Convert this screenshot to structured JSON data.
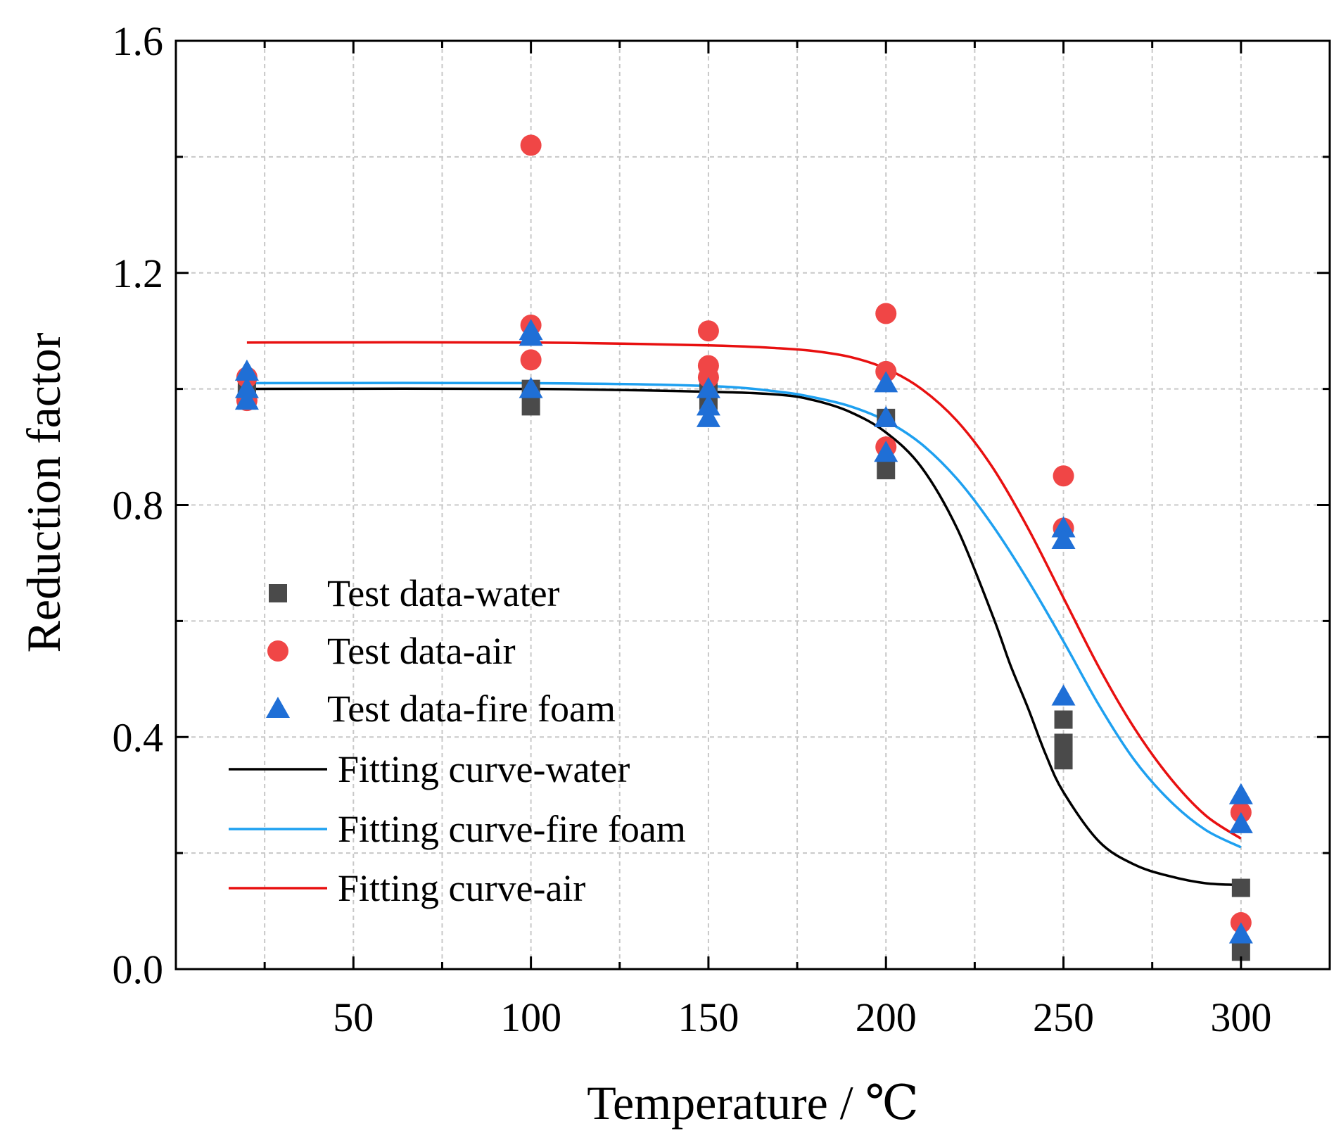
{
  "chart_data": {
    "type": "scatter",
    "title": "",
    "xlabel": "Temperature / ℃",
    "ylabel": "Reduction factor",
    "xlim": [
      0,
      325
    ],
    "ylim": [
      0.0,
      1.6
    ],
    "xticks": [
      50,
      100,
      150,
      200,
      250,
      300
    ],
    "xtick_labels": [
      "50",
      "100",
      "150",
      "200",
      "250",
      "300"
    ],
    "yticks": [
      0.0,
      0.4,
      0.8,
      1.2,
      1.6
    ],
    "ytick_labels": [
      "0.0",
      "0.4",
      "0.8",
      "1.2",
      "1.6"
    ],
    "grid": true,
    "legend_position": "center-left",
    "series": [
      {
        "name": "Test data-water",
        "kind": "scatter",
        "marker": "square",
        "color": "#4a4a4a",
        "points": [
          [
            20,
            1.0
          ],
          [
            20,
            0.99
          ],
          [
            20,
            0.98
          ],
          [
            100,
            0.97
          ],
          [
            100,
            1.0
          ],
          [
            150,
            0.98
          ],
          [
            150,
            1.0
          ],
          [
            200,
            0.86
          ],
          [
            200,
            0.95
          ],
          [
            250,
            0.43
          ],
          [
            250,
            0.39
          ],
          [
            250,
            0.36
          ],
          [
            300,
            0.14
          ],
          [
            300,
            0.03
          ]
        ]
      },
      {
        "name": "Test data-air",
        "kind": "scatter",
        "marker": "circle",
        "color": "#f04646",
        "points": [
          [
            20,
            1.02
          ],
          [
            20,
            0.98
          ],
          [
            100,
            1.42
          ],
          [
            100,
            1.11
          ],
          [
            100,
            1.05
          ],
          [
            150,
            1.1
          ],
          [
            150,
            1.04
          ],
          [
            150,
            1.02
          ],
          [
            200,
            1.13
          ],
          [
            200,
            1.03
          ],
          [
            200,
            0.9
          ],
          [
            250,
            0.85
          ],
          [
            250,
            0.76
          ],
          [
            300,
            0.27
          ],
          [
            300,
            0.08
          ]
        ]
      },
      {
        "name": "Test data-fire foam",
        "kind": "scatter",
        "marker": "triangle",
        "color": "#1f6fd6",
        "points": [
          [
            20,
            1.03
          ],
          [
            20,
            1.0
          ],
          [
            20,
            0.98
          ],
          [
            100,
            1.1
          ],
          [
            100,
            1.09
          ],
          [
            100,
            1.0
          ],
          [
            150,
            1.0
          ],
          [
            150,
            0.97
          ],
          [
            150,
            0.95
          ],
          [
            200,
            1.01
          ],
          [
            200,
            0.95
          ],
          [
            200,
            0.89
          ],
          [
            250,
            0.76
          ],
          [
            250,
            0.74
          ],
          [
            250,
            0.47
          ],
          [
            300,
            0.3
          ],
          [
            300,
            0.25
          ],
          [
            300,
            0.06
          ]
        ]
      },
      {
        "name": "Fitting curve-water",
        "kind": "line",
        "color": "#000000",
        "points": [
          [
            20,
            1.0
          ],
          [
            100,
            1.0
          ],
          [
            150,
            0.995
          ],
          [
            170,
            0.99
          ],
          [
            180,
            0.98
          ],
          [
            190,
            0.96
          ],
          [
            200,
            0.925
          ],
          [
            210,
            0.865
          ],
          [
            220,
            0.76
          ],
          [
            230,
            0.61
          ],
          [
            235,
            0.525
          ],
          [
            240,
            0.45
          ],
          [
            245,
            0.37
          ],
          [
            250,
            0.305
          ],
          [
            260,
            0.22
          ],
          [
            270,
            0.18
          ],
          [
            280,
            0.16
          ],
          [
            290,
            0.148
          ],
          [
            300,
            0.145
          ]
        ]
      },
      {
        "name": "Fitting curve-fire foam",
        "kind": "line",
        "color": "#1ea0f0",
        "points": [
          [
            20,
            1.01
          ],
          [
            100,
            1.01
          ],
          [
            150,
            1.005
          ],
          [
            170,
            0.995
          ],
          [
            180,
            0.985
          ],
          [
            190,
            0.97
          ],
          [
            200,
            0.945
          ],
          [
            210,
            0.905
          ],
          [
            220,
            0.845
          ],
          [
            230,
            0.765
          ],
          [
            240,
            0.67
          ],
          [
            250,
            0.565
          ],
          [
            260,
            0.455
          ],
          [
            270,
            0.36
          ],
          [
            280,
            0.29
          ],
          [
            290,
            0.24
          ],
          [
            300,
            0.21
          ]
        ]
      },
      {
        "name": "Fitting curve-air",
        "kind": "line",
        "color": "#e81010",
        "points": [
          [
            20,
            1.08
          ],
          [
            100,
            1.08
          ],
          [
            150,
            1.075
          ],
          [
            170,
            1.07
          ],
          [
            180,
            1.065
          ],
          [
            190,
            1.055
          ],
          [
            200,
            1.035
          ],
          [
            210,
            1.0
          ],
          [
            220,
            0.945
          ],
          [
            230,
            0.865
          ],
          [
            240,
            0.76
          ],
          [
            250,
            0.64
          ],
          [
            260,
            0.52
          ],
          [
            270,
            0.415
          ],
          [
            280,
            0.33
          ],
          [
            290,
            0.265
          ],
          [
            300,
            0.225
          ]
        ]
      }
    ]
  }
}
